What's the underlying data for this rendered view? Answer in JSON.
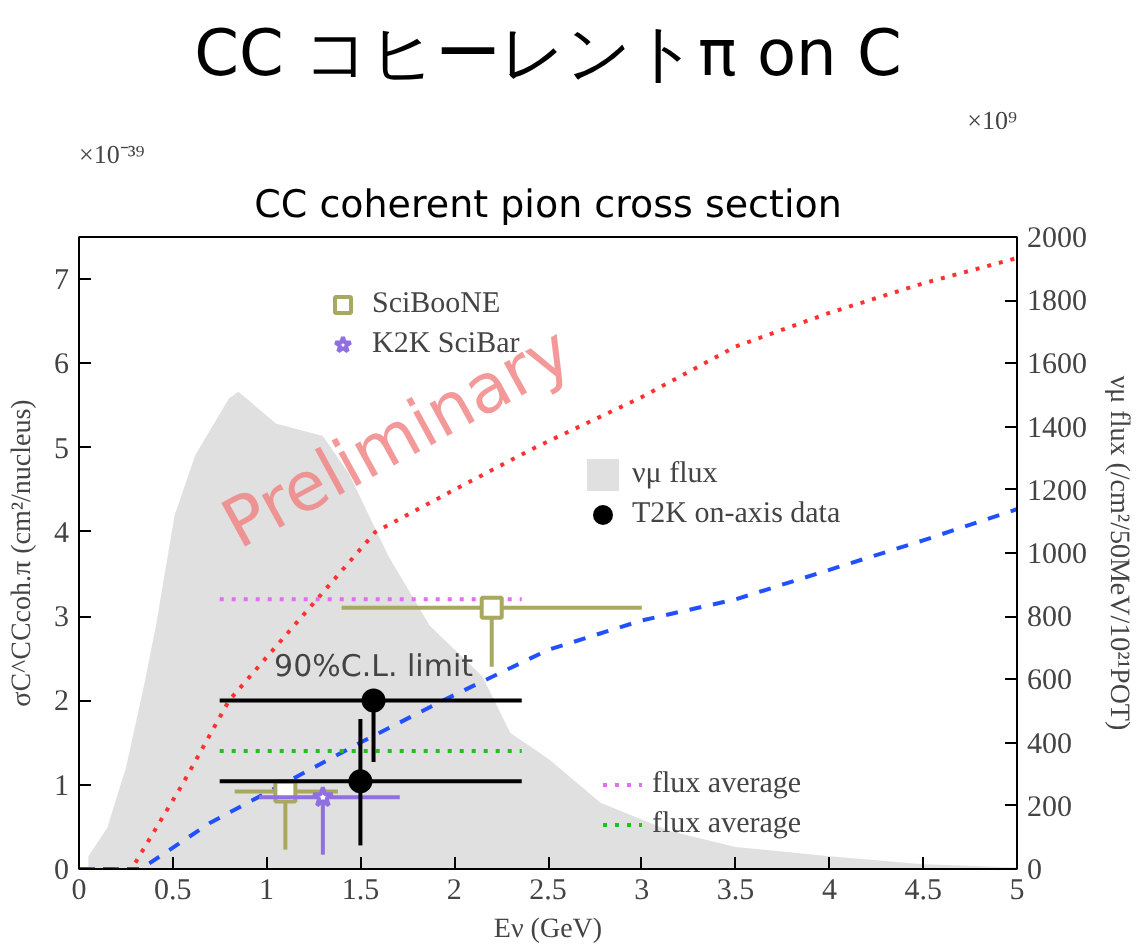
{
  "chart_data": {
    "type": "line",
    "title": "CC コヒーレントπ on C",
    "subtitle": "CC coherent pion cross section",
    "xlabel": "Eν (GeV)",
    "ylabel": "σC^CCcoh.π (cm²/nucleus)",
    "y2label": "νμ flux (/cm²/50MeV/10²¹POT)",
    "xlim": [
      0,
      5
    ],
    "ylim": [
      0,
      7.5
    ],
    "y2lim": [
      0,
      2000
    ],
    "xticks": [
      0,
      0.5,
      1,
      1.5,
      2,
      2.5,
      3,
      3.5,
      4,
      4.5,
      5
    ],
    "yticks": [
      0,
      1,
      2,
      3,
      4,
      5,
      6,
      7
    ],
    "y2ticks": [
      0,
      200,
      400,
      600,
      800,
      1000,
      1200,
      1400,
      1600,
      1800,
      2000
    ],
    "legend": "right",
    "annotations": [
      "Preliminary",
      "×10⁻³⁹",
      "×10⁹",
      {
        "text": "90%C.L. limit",
        "x": 1.57,
        "y": 2.0
      }
    ],
    "series": [
      {
        "name": "νμ flux",
        "type": "area",
        "axis": "y2",
        "color": "#e0e0e0",
        "x": [
          0.05,
          0.15,
          0.25,
          0.35,
          0.41,
          0.51,
          0.62,
          0.8,
          0.85,
          1.05,
          1.3,
          1.44,
          1.65,
          1.87,
          2.15,
          2.3,
          2.5,
          2.78,
          3.15,
          3.5,
          4.0,
          4.5,
          5.0
        ],
        "values": [
          40,
          130,
          320,
          590,
          770,
          1120,
          1310,
          1490,
          1510,
          1410,
          1370,
          1250,
          990,
          770,
          610,
          430,
          350,
          210,
          120,
          70,
          40,
          15,
          5
        ]
      },
      {
        "color": "#ff3030",
        "line_style": "dotted",
        "x": [
          0,
          0.28,
          0.55,
          0.8,
          1.19,
          1.58,
          2.0,
          2.43,
          3.0,
          3.5,
          4.0,
          4.5,
          5.0
        ],
        "values": [
          0,
          0,
          1,
          2,
          3,
          4,
          4.5,
          5.0,
          5.6,
          6.2,
          6.6,
          6.95,
          7.25
        ]
      },
      {
        "color": "#2050ff",
        "line_style": "dashed",
        "x": [
          0,
          0.33,
          0.7,
          1.08,
          1.5,
          1.94,
          2.5,
          3.0,
          3.5,
          4.0,
          4.5,
          5.0
        ],
        "values": [
          0,
          0,
          0.55,
          1.0,
          1.5,
          2.0,
          2.6,
          2.95,
          3.2,
          3.55,
          3.9,
          4.27
        ]
      },
      {
        "name": "flux average",
        "color": "#e070f0",
        "line_style": "dotted",
        "x": [
          0.75,
          2.36
        ],
        "values": [
          3.2,
          3.2
        ]
      },
      {
        "name": "flux average",
        "color": "#20c020",
        "line_style": "dotted",
        "x": [
          0.75,
          2.36
        ],
        "values": [
          1.4,
          1.4
        ]
      },
      {
        "name": "SciBooNE",
        "type": "scatter",
        "marker": "square",
        "color": "#a8a860",
        "x": [
          1.1,
          2.2
        ],
        "values": [
          0.92,
          3.1
        ],
        "errors": [
          [
            0.23,
            0.92
          ],
          [
            2.4,
            3.1
          ]
        ],
        "xerrors": [
          [
            0.83,
            1.38
          ],
          [
            1.4,
            3.0
          ]
        ]
      },
      {
        "name": "K2K SciBar",
        "type": "scatter",
        "marker": "star",
        "color": "#9070e0",
        "x": [
          1.3
        ],
        "values": [
          0.85
        ],
        "errors": [
          [
            0.17,
            0.85
          ]
        ],
        "xerrors": [
          [
            0.96,
            1.71
          ]
        ]
      },
      {
        "name": "T2K on-axis data",
        "type": "scatter",
        "marker": "circle",
        "color": "#000000",
        "x": [
          1.5,
          1.57
        ],
        "values": [
          1.04,
          2.0
        ],
        "errors": [
          [
            0.28,
            1.78
          ],
          [
            1.27,
            2.0
          ]
        ],
        "xerrors": [
          [
            0.75,
            2.36
          ],
          [
            0.75,
            2.36
          ]
        ]
      }
    ]
  }
}
